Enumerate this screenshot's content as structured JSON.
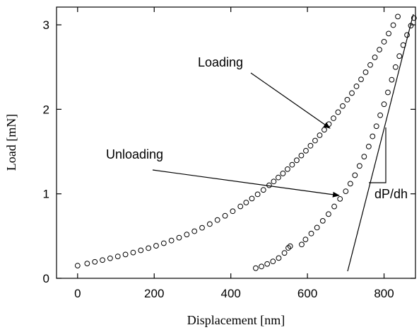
{
  "chart_data": {
    "type": "scatter",
    "xlabel": "Displacement [nm]",
    "ylabel": "Load [mN]",
    "annotations": [
      "dP/dh"
    ],
    "xlim": [
      -55,
      882
    ],
    "ylim": [
      0,
      3.21
    ],
    "xticks": [
      0,
      200,
      400,
      600,
      800
    ],
    "yticks": [
      0,
      1,
      2,
      3
    ],
    "grid": false,
    "series": [
      {
        "name": "Loading",
        "color": "#000000",
        "x": [
          0,
          25,
          45,
          65,
          85,
          105,
          125,
          145,
          165,
          185,
          205,
          225,
          245,
          265,
          285,
          305,
          325,
          345,
          365,
          385,
          405,
          425,
          440,
          455,
          470,
          485,
          500,
          512,
          524,
          536,
          548,
          560,
          572,
          584,
          596,
          608,
          620,
          632,
          644,
          656,
          668,
          680,
          692,
          704,
          716,
          728,
          740,
          752,
          764,
          776,
          788,
          800,
          812,
          824,
          836
        ],
        "values": [
          0.15,
          0.175,
          0.195,
          0.216,
          0.237,
          0.259,
          0.282,
          0.305,
          0.331,
          0.357,
          0.385,
          0.415,
          0.447,
          0.481,
          0.518,
          0.557,
          0.598,
          0.642,
          0.69,
          0.74,
          0.794,
          0.851,
          0.897,
          0.944,
          0.994,
          1.046,
          1.101,
          1.146,
          1.193,
          1.241,
          1.292,
          1.344,
          1.397,
          1.453,
          1.51,
          1.569,
          1.63,
          1.693,
          1.758,
          1.825,
          1.894,
          1.966,
          2.039,
          2.114,
          2.192,
          2.272,
          2.354,
          2.439,
          2.525,
          2.615,
          2.706,
          2.8,
          2.897,
          2.996,
          3.098
        ]
      },
      {
        "name": "Unloading",
        "color": "#000000",
        "x": [
          465,
          480,
          495,
          510,
          525,
          540,
          550,
          555,
          585,
          595,
          610,
          625,
          640,
          655,
          670,
          685,
          700,
          712,
          724,
          736,
          748,
          760,
          770,
          780,
          790,
          800,
          810,
          820,
          830,
          840,
          850,
          860,
          870,
          878
        ],
        "values": [
          0.12,
          0.14,
          0.17,
          0.2,
          0.24,
          0.3,
          0.36,
          0.38,
          0.4,
          0.46,
          0.53,
          0.6,
          0.68,
          0.76,
          0.85,
          0.94,
          1.03,
          1.12,
          1.22,
          1.33,
          1.44,
          1.56,
          1.68,
          1.8,
          1.93,
          2.06,
          2.2,
          2.35,
          2.5,
          2.63,
          2.76,
          2.88,
          2.99,
          3.08
        ]
      }
    ]
  }
}
